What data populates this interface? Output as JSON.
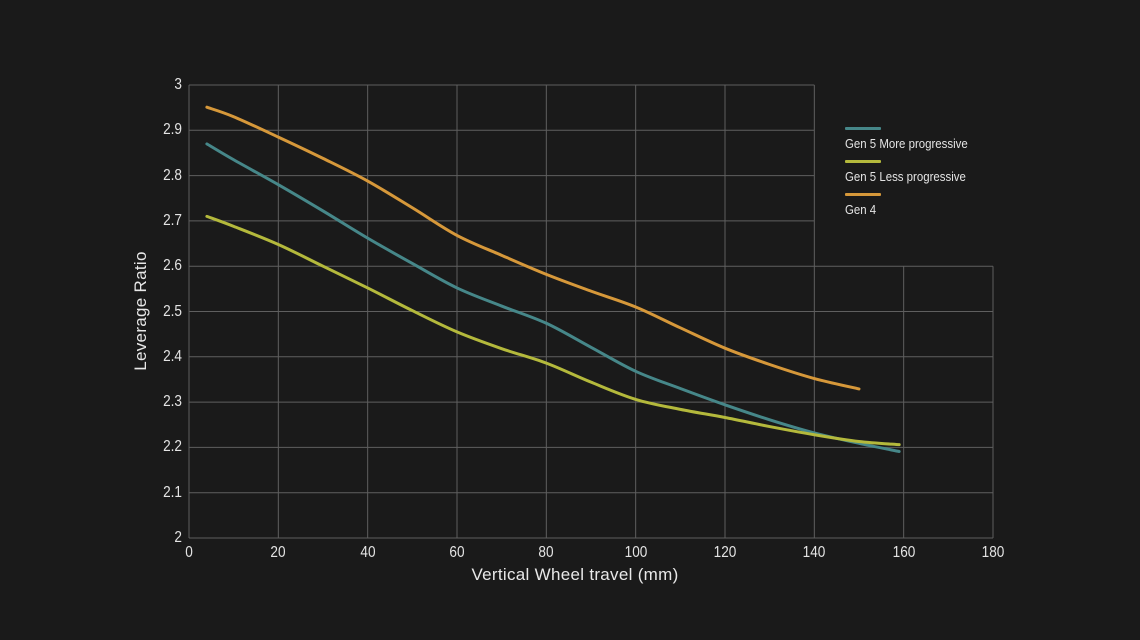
{
  "colors": {
    "background": "#1a1a1a",
    "grid": "#5f5f5f",
    "text": "#e4e4e4",
    "series_teal": "#468789",
    "series_yellow": "#b4b93c",
    "series_orange": "#d6983a"
  },
  "chart_data": {
    "type": "line",
    "title": "",
    "xlabel": "Vertical Wheel travel (mm)",
    "ylabel": "Leverage Ratio",
    "xlim": [
      0,
      180
    ],
    "ylim": [
      2,
      3
    ],
    "grid": "on",
    "legend_position": "top-right-inside",
    "x_tick_values": [
      0,
      20,
      40,
      60,
      80,
      100,
      120,
      140,
      160,
      180
    ],
    "x_tick_labels": [
      "0",
      "20",
      "40",
      "60",
      "80",
      "100",
      "120",
      "140",
      "160",
      "180"
    ],
    "y_tick_values": [
      2,
      2.1,
      2.2,
      2.3,
      2.4,
      2.5,
      2.6,
      2.7,
      2.8,
      2.9,
      3
    ],
    "y_tick_labels": [
      "2",
      "2.1",
      "2.2",
      "2.3",
      "2.4",
      "2.5",
      "2.6",
      "2.7",
      "2.8",
      "2.9",
      "3"
    ],
    "series": [
      {
        "name": "Gen 5 More progressive",
        "color": "#468789",
        "x": [
          4,
          10,
          20,
          30,
          40,
          50,
          60,
          70,
          80,
          90,
          100,
          110,
          120,
          130,
          140,
          150,
          159
        ],
        "y": [
          2.87,
          2.835,
          2.78,
          2.722,
          2.662,
          2.606,
          2.552,
          2.512,
          2.474,
          2.421,
          2.368,
          2.33,
          2.294,
          2.261,
          2.232,
          2.209,
          2.191
        ]
      },
      {
        "name": "Gen 5 Less progressive",
        "color": "#b4b93c",
        "x": [
          4,
          10,
          20,
          30,
          40,
          50,
          60,
          70,
          80,
          90,
          100,
          110,
          120,
          130,
          140,
          150,
          159
        ],
        "y": [
          2.71,
          2.688,
          2.648,
          2.6,
          2.552,
          2.502,
          2.455,
          2.418,
          2.386,
          2.344,
          2.306,
          2.284,
          2.266,
          2.246,
          2.228,
          2.213,
          2.206
        ]
      },
      {
        "name": "Gen 4",
        "color": "#d6983a",
        "x": [
          4,
          10,
          20,
          30,
          40,
          50,
          60,
          70,
          80,
          90,
          100,
          110,
          120,
          130,
          140,
          150
        ],
        "y": [
          2.951,
          2.93,
          2.885,
          2.838,
          2.788,
          2.729,
          2.668,
          2.624,
          2.582,
          2.545,
          2.51,
          2.464,
          2.419,
          2.383,
          2.352,
          2.329
        ]
      }
    ]
  }
}
